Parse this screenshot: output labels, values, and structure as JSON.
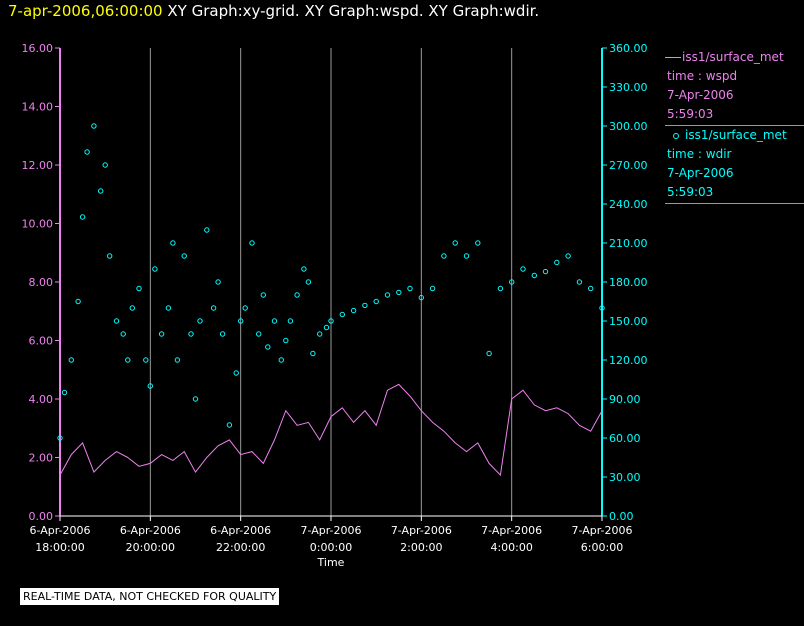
{
  "header": {
    "datetime": "7-apr-2006,06:00:00",
    "graphs": " XY Graph:xy-grid.  XY Graph:wspd.  XY Graph:wdir."
  },
  "legend": {
    "wspd": {
      "name": "iss1/surface_met",
      "field": "time : wspd",
      "date": "7-Apr-2006",
      "time": "5:59:03"
    },
    "wdir": {
      "name": "iss1/surface_met",
      "field": "time : wdir",
      "date": "7-Apr-2006",
      "time": "5:59:03"
    }
  },
  "notice": "REAL-TIME DATA, NOT CHECKED FOR QUALITY",
  "chart_data": {
    "type": "line",
    "xlabel": "Time",
    "x_start_hours": 0,
    "x_end_hours": 12,
    "x_ticks": [
      {
        "hours": 0,
        "date": "6-Apr-2006",
        "time": "18:00:00"
      },
      {
        "hours": 2,
        "date": "6-Apr-2006",
        "time": "20:00:00"
      },
      {
        "hours": 4,
        "date": "6-Apr-2006",
        "time": "22:00:00"
      },
      {
        "hours": 6,
        "date": "7-Apr-2006",
        "time": "0:00:00"
      },
      {
        "hours": 8,
        "date": "7-Apr-2006",
        "time": "2:00:00"
      },
      {
        "hours": 10,
        "date": "7-Apr-2006",
        "time": "4:00:00"
      },
      {
        "hours": 12,
        "date": "7-Apr-2006",
        "time": "6:00:00"
      }
    ],
    "y_left": {
      "label": "wspd",
      "min": 0,
      "max": 16,
      "ticks": [
        "0.00",
        "2.00",
        "4.00",
        "6.00",
        "8.00",
        "10.00",
        "12.00",
        "14.00",
        "16.00"
      ]
    },
    "y_right": {
      "label": "wdir",
      "min": 0,
      "max": 360,
      "ticks": [
        "0.00",
        "30.00",
        "60.00",
        "90.00",
        "120.00",
        "150.00",
        "180.00",
        "210.00",
        "240.00",
        "270.00",
        "300.00",
        "330.00",
        "360.00"
      ]
    },
    "colors": {
      "wspd": "#ee82ee",
      "wdir": "#00ffff",
      "axis_left": "#ee82ee",
      "axis_right": "#00ffff",
      "grid": "#9a9a9a"
    },
    "series": [
      {
        "name": "wspd",
        "axis": "left",
        "style": "line",
        "x_hours": [
          0,
          0.25,
          0.5,
          0.75,
          1,
          1.25,
          1.5,
          1.75,
          2,
          2.25,
          2.5,
          2.75,
          3,
          3.25,
          3.5,
          3.75,
          4,
          4.25,
          4.5,
          4.75,
          5,
          5.25,
          5.5,
          5.75,
          6,
          6.25,
          6.5,
          6.75,
          7,
          7.25,
          7.5,
          7.75,
          8,
          8.25,
          8.5,
          8.75,
          9,
          9.25,
          9.5,
          9.75,
          10,
          10.25,
          10.5,
          10.75,
          11,
          11.25,
          11.5,
          11.75,
          12
        ],
        "values": [
          1.4,
          2.1,
          2.5,
          1.5,
          1.9,
          2.2,
          2.0,
          1.7,
          1.8,
          2.1,
          1.9,
          2.2,
          1.5,
          2.0,
          2.4,
          2.6,
          2.1,
          2.2,
          1.8,
          2.6,
          3.6,
          3.1,
          3.2,
          2.6,
          3.4,
          3.7,
          3.2,
          3.6,
          3.1,
          4.3,
          4.5,
          4.1,
          3.6,
          3.2,
          2.9,
          2.5,
          2.2,
          2.5,
          1.8,
          1.4,
          4.0,
          4.3,
          3.8,
          3.6,
          3.7,
          3.5,
          3.1,
          2.9,
          3.6
        ]
      },
      {
        "name": "wdir",
        "axis": "right",
        "style": "scatter",
        "x_hours": [
          0,
          0.1,
          0.25,
          0.4,
          0.5,
          0.6,
          0.75,
          0.9,
          1,
          1.1,
          1.25,
          1.4,
          1.5,
          1.6,
          1.75,
          1.9,
          2,
          2.1,
          2.25,
          2.4,
          2.5,
          2.6,
          2.75,
          2.9,
          3,
          3.1,
          3.25,
          3.4,
          3.5,
          3.6,
          3.75,
          3.9,
          4,
          4.1,
          4.25,
          4.4,
          4.5,
          4.6,
          4.75,
          4.9,
          5,
          5.1,
          5.25,
          5.4,
          5.5,
          5.6,
          5.75,
          5.9,
          6,
          6.25,
          6.5,
          6.75,
          7,
          7.25,
          7.5,
          7.75,
          8,
          8.25,
          8.5,
          8.75,
          9,
          9.25,
          9.5,
          9.75,
          10,
          10.25,
          10.5,
          10.75,
          11,
          11.25,
          11.5,
          11.75,
          12
        ],
        "values": [
          60,
          95,
          120,
          165,
          230,
          280,
          300,
          250,
          270,
          200,
          150,
          140,
          120,
          160,
          175,
          120,
          100,
          190,
          140,
          160,
          210,
          120,
          200,
          140,
          90,
          150,
          220,
          160,
          180,
          140,
          70,
          110,
          150,
          160,
          210,
          140,
          170,
          130,
          150,
          120,
          135,
          150,
          170,
          190,
          180,
          125,
          140,
          145,
          150,
          155,
          158,
          162,
          165,
          170,
          172,
          175,
          168,
          175,
          200,
          210,
          200,
          210,
          125,
          175,
          180,
          190,
          185,
          188,
          195,
          200,
          180,
          175,
          160
        ]
      }
    ]
  }
}
